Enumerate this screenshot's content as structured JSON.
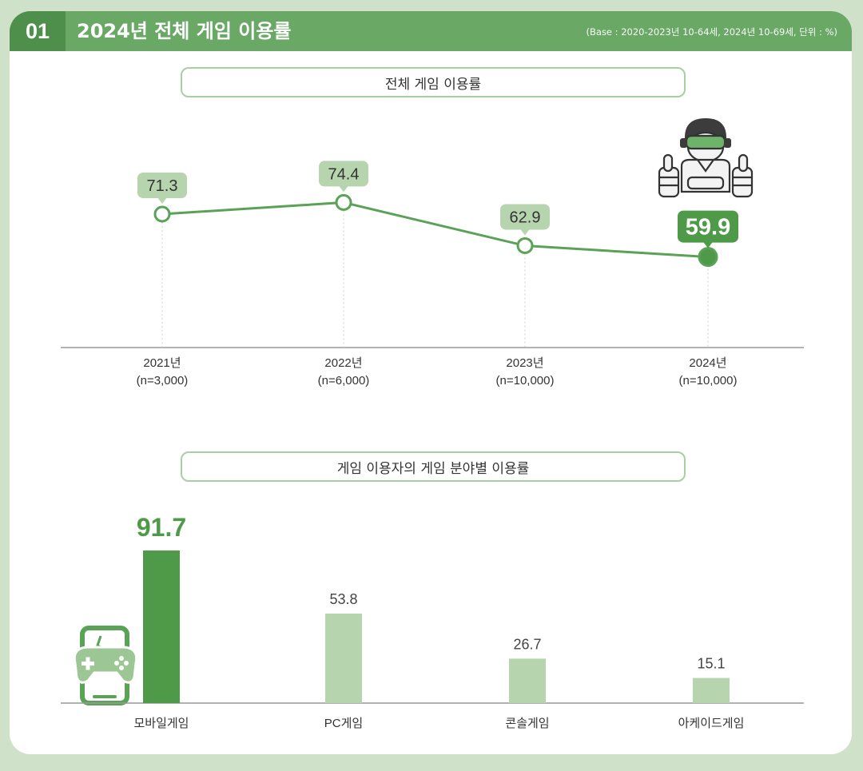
{
  "header": {
    "number": "01",
    "title": "2024년 전체 게임 이용률",
    "note": "(Base : 2020-2023년 10-64세, 2024년 10-69세, 단위 : %)"
  },
  "colors": {
    "header_green": "#6aa866",
    "badge_green": "#4f8f4c",
    "line_green": "#5aa256",
    "light_green": "#b6d4ad",
    "dark_green": "#4e9a48"
  },
  "chart_data": [
    {
      "type": "line",
      "title": "전체 게임 이용률",
      "categories": [
        "2021년",
        "2022년",
        "2023년",
        "2024년"
      ],
      "sublabels": [
        "(n=3,000)",
        "(n=6,000)",
        "(n=10,000)",
        "(n=10,000)"
      ],
      "values": [
        71.3,
        74.4,
        62.9,
        59.9
      ],
      "value_labels": [
        "71.3",
        "74.4",
        "62.9",
        "59.9"
      ],
      "highlight_index": 3,
      "ylim": [
        0,
        80
      ]
    },
    {
      "type": "bar",
      "title": "게임 이용자의 게임 분야별 이용률",
      "categories": [
        "모바일게임",
        "PC게임",
        "콘솔게임",
        "아케이드게임"
      ],
      "values": [
        91.7,
        53.8,
        26.7,
        15.1
      ],
      "value_labels": [
        "91.7",
        "53.8",
        "26.7",
        "15.1"
      ],
      "highlight_index": 0,
      "ylim": [
        0,
        100
      ]
    }
  ],
  "icons": [
    "gamer-thumbs-up-icon",
    "mobile-gamepad-icon"
  ]
}
